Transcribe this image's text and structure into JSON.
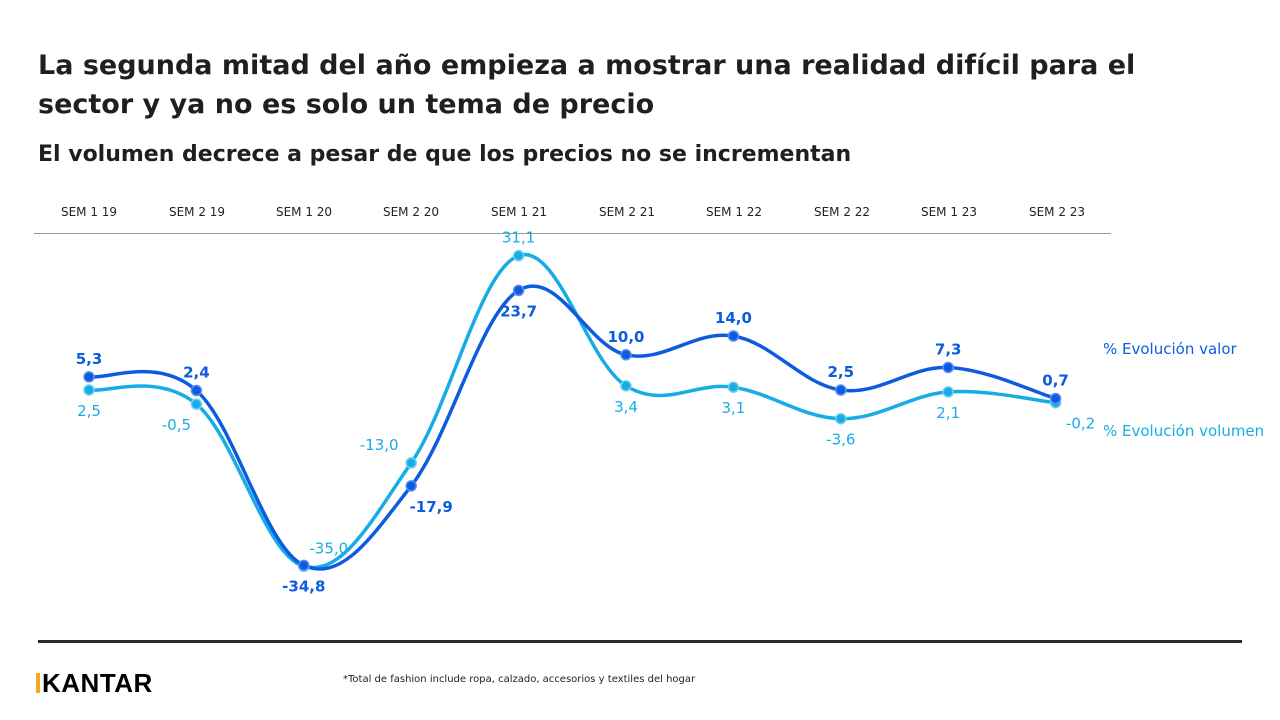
{
  "title": "La segunda mitad del año empieza a mostrar una realidad difícil para el sector y ya no es solo un tema de precio",
  "subtitle": "El volumen decrece a pesar de que los precios no se incrementan",
  "footnote": "*Total de fashion include ropa, calzado, accesorios y textiles del hogar",
  "brand": "KANTAR",
  "colors": {
    "valor": "#0d5ce0",
    "volumen": "#18ace6",
    "title": "#1f1f1f",
    "logo_accent": "#f5a623"
  },
  "chart_data": {
    "type": "line",
    "categories": [
      "SEM 1 19",
      "SEM 2 19",
      "SEM 1 20",
      "SEM 2 20",
      "SEM 1 21",
      "SEM 2 21",
      "SEM 1 22",
      "SEM 2 22",
      "SEM 1 23",
      "SEM 2 23"
    ],
    "series": [
      {
        "name": "% Evolución valor",
        "values": [
          5.3,
          2.4,
          -34.8,
          -17.9,
          23.7,
          10.0,
          14.0,
          2.5,
          7.3,
          0.7
        ],
        "labels": [
          "5,3",
          "2,4",
          "-34,8",
          "-17,9",
          "23,7",
          "10,0",
          "14,0",
          "2,5",
          "7,3",
          "0,7"
        ]
      },
      {
        "name": "% Evolución volumen",
        "values": [
          2.5,
          -0.5,
          -35.0,
          -13.0,
          31.1,
          3.4,
          3.1,
          -3.6,
          2.1,
          -0.2
        ],
        "labels": [
          "2,5",
          "-0,5",
          "-35,0",
          "-13,0",
          "31,1",
          "3,4",
          "3,1",
          "-3,6",
          "2,1",
          "-0,2"
        ]
      }
    ],
    "legend_position": "right",
    "grid": false,
    "data_labels": true
  }
}
